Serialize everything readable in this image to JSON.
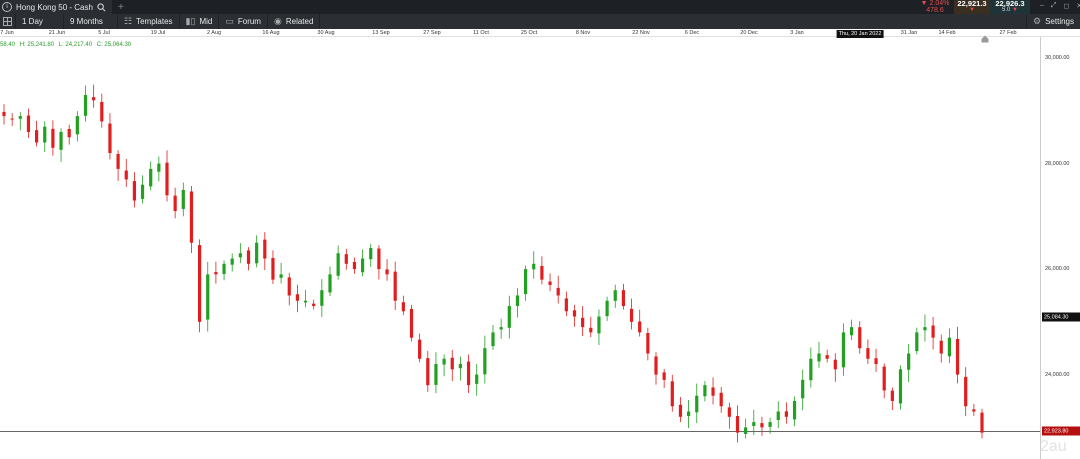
{
  "tab": {
    "title": "Hong Kong 50 - Cash",
    "add_label": "+"
  },
  "quotes": {
    "change_pct": "▼ 2.04%",
    "change_abs": "478.6",
    "sell": "22,921.3",
    "buy": "22,926.3",
    "spread": "5.0",
    "sell_arrow": "▼",
    "buy_arrow": "▼"
  },
  "toolbar": {
    "interval": "1 Day",
    "range": "9 Months",
    "templates": "Templates",
    "mid": "Mid",
    "forum": "Forum",
    "related": "Related",
    "settings": "Settings"
  },
  "ohlc": {
    "o": "58.40",
    "h": "H: 25,241.80",
    "l": "L: 24,217.40",
    "c": "C: 25,064.30"
  },
  "date_labels": [
    "7 Jun",
    "21 Jun",
    "5 Jul",
    "19 Jul",
    "2 Aug",
    "16 Aug",
    "30 Aug",
    "13 Sep",
    "27 Sep",
    "11 Oct",
    "25 Oct",
    "8 Nov",
    "22 Nov",
    "6 Dec",
    "20 Dec",
    "3 Jan",
    "31 Jan",
    "14 Feb",
    "27 Feb"
  ],
  "crosshair_date": "Thu, 20 Jan 2022",
  "price_labels": [
    "30,000.00",
    "28,000.00",
    "26,000.00",
    "24,000.00"
  ],
  "last_price_tag": "25,084.30",
  "current_price_tag": "22,923.80",
  "watermark": "2au",
  "colors": {
    "up": "#21a021",
    "down": "#e01e1e",
    "bg": "#ffffff",
    "toolbar": "#2b2f34",
    "tag_dark": "#111111",
    "tag_red": "#b50f0f"
  },
  "chart_data": {
    "type": "candlestick",
    "xlabel": "",
    "ylabel": "",
    "ylim": [
      22400,
      30400
    ],
    "values_approx_close": [
      28900,
      28850,
      28900,
      28600,
      28400,
      28700,
      28300,
      28600,
      28500,
      28900,
      29300,
      29200,
      28800,
      28200,
      27900,
      27700,
      27300,
      27600,
      27900,
      28000,
      27400,
      27100,
      27500,
      26500,
      25000,
      25900,
      25900,
      26100,
      26200,
      26300,
      26100,
      26500,
      26200,
      25800,
      25900,
      25500,
      25400,
      25400,
      25300,
      25600,
      25900,
      26300,
      26100,
      26000,
      26200,
      26400,
      26000,
      25900,
      25400,
      25200,
      24700,
      24300,
      23800,
      24200,
      24300,
      24100,
      24200,
      23800,
      24000,
      24500,
      24800,
      24900,
      25300,
      25500,
      26000,
      26100,
      25800,
      25700,
      25500,
      25200,
      25100,
      24900,
      24800,
      25100,
      25400,
      25600,
      25300,
      25000,
      24800,
      24400,
      24000,
      23900,
      23400,
      23200,
      23300,
      23600,
      23800,
      23600,
      23400,
      23200,
      22900,
      23000,
      23100,
      23000,
      23100,
      23300,
      23200,
      23500,
      23900,
      24300,
      24400,
      24300,
      24100,
      24800,
      24900,
      24500,
      24300,
      24200,
      23700,
      23500,
      24100,
      24400,
      24800,
      24900,
      24700,
      24400,
      24700,
      24000,
      23400,
      23300,
      22900
    ]
  }
}
